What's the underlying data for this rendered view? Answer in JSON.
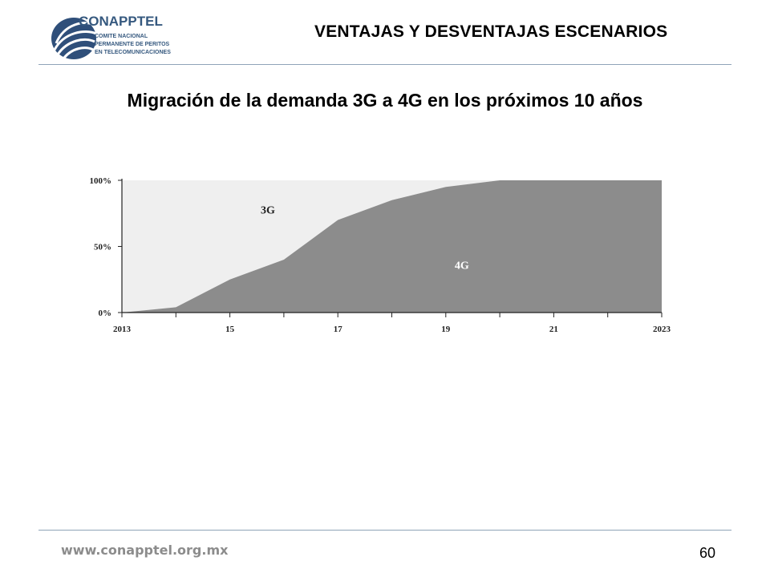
{
  "header": {
    "title": "VENTAJAS Y DESVENTAJAS ESCENARIOS",
    "logo": {
      "name": "CONAPPTEL",
      "line1": "COMITE NACIONAL",
      "line2": "PERMANENTE DE PERITOS",
      "line3": "EN TELECOMUNICACIONES"
    }
  },
  "slide": {
    "title": "Migración de la demanda 3G a 4G en los próximos 10 años"
  },
  "chart_data": {
    "type": "area",
    "title": "",
    "xlabel": "",
    "ylabel": "",
    "x": [
      2013,
      2014,
      2015,
      2016,
      2017,
      2018,
      2019,
      2020,
      2021,
      2022,
      2023
    ],
    "x_tick_labels": [
      "2013",
      "15",
      "17",
      "19",
      "21",
      "2023"
    ],
    "x_tick_values": [
      2013,
      2015,
      2017,
      2019,
      2021,
      2023
    ],
    "y_tick_labels": [
      "100%",
      "50%",
      "0%"
    ],
    "y_tick_values": [
      100,
      50,
      0
    ],
    "ylim": [
      0,
      100
    ],
    "series": [
      {
        "name": "4G",
        "values": [
          0,
          4,
          25,
          40,
          70,
          85,
          95,
          100,
          100,
          100,
          100
        ],
        "color": "#8c8c8c"
      },
      {
        "name": "3G",
        "values": [
          100,
          96,
          75,
          60,
          30,
          15,
          5,
          0,
          0,
          0,
          0
        ],
        "color": "#efefef"
      }
    ],
    "stacked": true,
    "grid": false
  },
  "footer": {
    "url": "www.conapptel.org.mx",
    "page": "60"
  }
}
